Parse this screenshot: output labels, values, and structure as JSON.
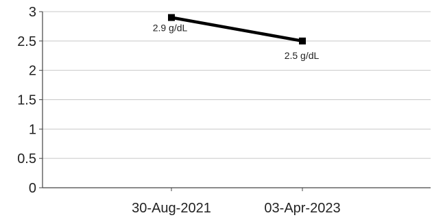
{
  "chart_data": {
    "type": "line",
    "categories": [
      "30-Aug-2021",
      "03-Apr-2023"
    ],
    "series": [
      {
        "values": [
          2.9,
          2.5
        ],
        "data_labels": [
          "2.9 g/dL",
          "2.5 g/dL"
        ]
      }
    ],
    "yticks": [
      "0",
      "0.5",
      "1",
      "1.5",
      "2",
      "2.5",
      "3"
    ],
    "ylim": [
      0,
      3
    ],
    "grid": true,
    "legend": "none",
    "title": "",
    "xlabel": "",
    "ylabel": "",
    "colors": {
      "line": "#000000",
      "grid": "#c8c8c8",
      "axis": "#444444",
      "text": "#222222"
    }
  }
}
